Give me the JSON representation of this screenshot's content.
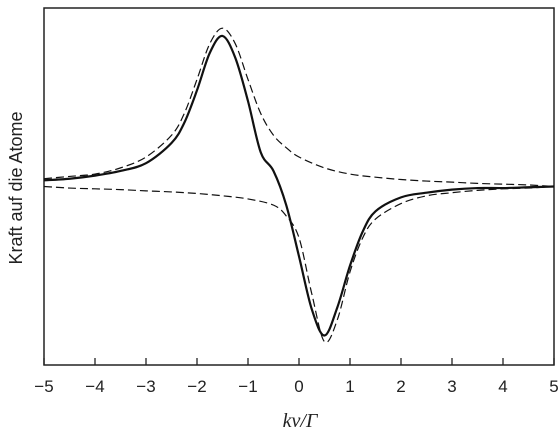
{
  "chart_data": {
    "type": "line",
    "title": "",
    "xlabel": "kv/Γ",
    "ylabel": "Kraft auf die Atome",
    "xlim": [
      -5,
      5
    ],
    "ylim": [
      -1.15,
      1.15
    ],
    "x_ticks": [
      -5,
      -4,
      -3,
      -2,
      -1,
      0,
      1,
      2,
      3,
      4,
      5
    ],
    "x_tick_labels": [
      "−5",
      "−4",
      "−3",
      "−2",
      "−1",
      "0",
      "1",
      "2",
      "3",
      "4",
      "5"
    ],
    "y_ticks_labeled": false,
    "grid": false,
    "legend": "none",
    "series": [
      {
        "style": "solid",
        "color": "#111111",
        "x": [
          -5,
          -4.5,
          -4,
          -3.5,
          -3,
          -2.5,
          -2.25,
          -2,
          -1.75,
          -1.5,
          -1.25,
          -1,
          -0.75,
          -0.5,
          -0.25,
          0,
          0.25,
          0.5,
          0.75,
          1,
          1.25,
          1.5,
          2,
          2.5,
          3,
          3.5,
          4,
          4.5,
          5
        ],
        "y": [
          0.04,
          0.05,
          0.07,
          0.1,
          0.15,
          0.28,
          0.41,
          0.62,
          0.86,
          0.97,
          0.83,
          0.55,
          0.22,
          0.1,
          -0.12,
          -0.45,
          -0.79,
          -0.96,
          -0.78,
          -0.51,
          -0.29,
          -0.16,
          -0.07,
          -0.04,
          -0.02,
          -0.01,
          -0.01,
          -0.005,
          0.0
        ]
      },
      {
        "style": "dashed",
        "color": "#111111",
        "x": [
          -5,
          -4.5,
          -4,
          -3.5,
          -3,
          -2.5,
          -2.25,
          -2,
          -1.75,
          -1.5,
          -1.25,
          -1,
          -0.75,
          -0.5,
          -0.25,
          0,
          0.5,
          1,
          1.5,
          2,
          2.5,
          3,
          3.5,
          4,
          4.5,
          5
        ],
        "y": [
          0.05,
          0.065,
          0.08,
          0.12,
          0.19,
          0.33,
          0.47,
          0.69,
          0.92,
          1.02,
          0.92,
          0.69,
          0.47,
          0.33,
          0.25,
          0.19,
          0.12,
          0.08,
          0.06,
          0.045,
          0.035,
          0.028,
          0.02,
          0.015,
          0.01,
          0.0
        ]
      },
      {
        "style": "dashed",
        "color": "#111111",
        "x": [
          -5,
          -4.5,
          -4,
          -3.5,
          -3,
          -2.5,
          -2,
          -1.5,
          -1,
          -0.5,
          -0.25,
          0,
          0.25,
          0.5,
          0.75,
          1,
          1.25,
          1.5,
          2,
          2.5,
          3,
          3.5,
          4,
          4.5,
          5
        ],
        "y": [
          0.0,
          -0.01,
          -0.015,
          -0.02,
          -0.028,
          -0.035,
          -0.045,
          -0.06,
          -0.08,
          -0.12,
          -0.19,
          -0.33,
          -0.69,
          -1.0,
          -0.86,
          -0.55,
          -0.33,
          -0.21,
          -0.11,
          -0.06,
          -0.04,
          -0.025,
          -0.015,
          -0.01,
          0.0
        ]
      }
    ]
  }
}
